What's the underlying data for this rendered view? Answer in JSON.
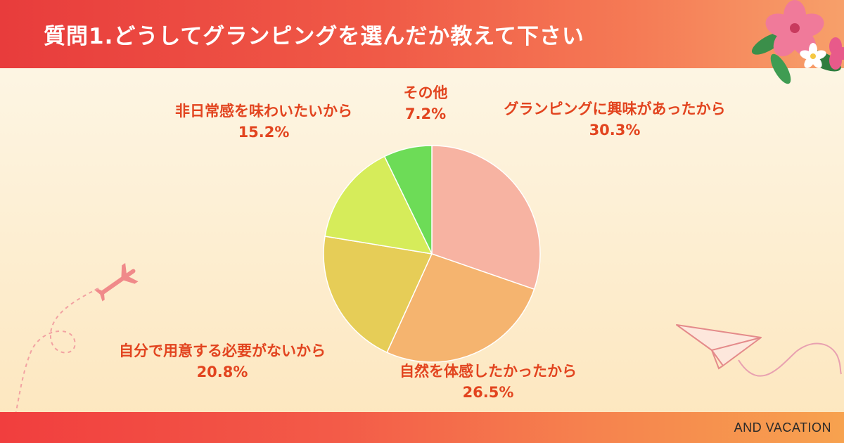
{
  "header": {
    "title": "質問1.どうしてグランピングを選んだか教えて下さい"
  },
  "footer": {
    "brand": "AND VACATION"
  },
  "colors": {
    "accent": "#e83c3c",
    "label_text": "#e2441f"
  },
  "icons": [
    "airplane-icon",
    "paper-plane-icon",
    "hibiscus-flower-icon"
  ],
  "chart_data": {
    "type": "pie",
    "title": "質問1.どうしてグランピングを選んだか教えて下さい",
    "start": "12 o'clock",
    "direction": "clockwise",
    "slices": [
      {
        "label": "グランピングに興味があったから",
        "value": 30.3,
        "value_label": "30.3%",
        "color": "#f7b3a2"
      },
      {
        "label": "自然を体感したかったから",
        "value": 26.5,
        "value_label": "26.5%",
        "color": "#f5b46f"
      },
      {
        "label": "自分で用意する必要がないから",
        "value": 20.8,
        "value_label": "20.8%",
        "color": "#e6cd57"
      },
      {
        "label": "非日常感を味わいたいから",
        "value": 15.2,
        "value_label": "15.2%",
        "color": "#d6ec5a"
      },
      {
        "label": "その他",
        "value": 7.2,
        "value_label": "7.2%",
        "color": "#6ddc57"
      }
    ]
  }
}
